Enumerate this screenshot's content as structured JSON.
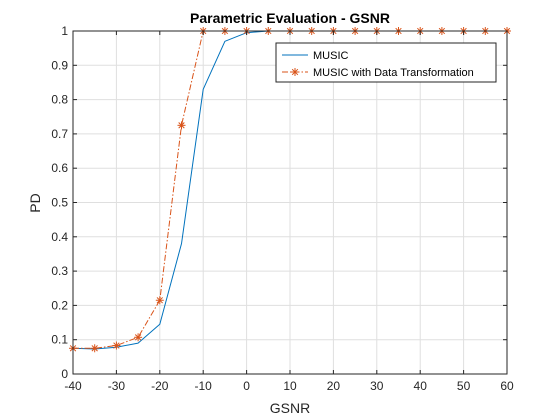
{
  "chart_data": {
    "type": "line",
    "title": "Parametric Evaluation - GSNR",
    "xlabel": "GSNR",
    "ylabel": "PD",
    "xlim": [
      -40,
      60
    ],
    "ylim": [
      0,
      1
    ],
    "xticks": [
      -40,
      -30,
      -20,
      -10,
      0,
      10,
      20,
      30,
      40,
      50,
      60
    ],
    "yticks": [
      0,
      0.1,
      0.2,
      0.3,
      0.4,
      0.5,
      0.6,
      0.7,
      0.8,
      0.9,
      1
    ],
    "grid": true,
    "legend_position": "top-right",
    "x": [
      -40,
      -35,
      -30,
      -25,
      -20,
      -15,
      -10,
      -5,
      0,
      5,
      10,
      15,
      20,
      25,
      30,
      35,
      40,
      45,
      50,
      55,
      60
    ],
    "series": [
      {
        "name": "MUSIC",
        "color": "#0072BD",
        "line_style": "solid",
        "marker": "none",
        "values": [
          0.075,
          0.073,
          0.078,
          0.09,
          0.145,
          0.38,
          0.83,
          0.97,
          0.995,
          1,
          1,
          1,
          1,
          1,
          1,
          1,
          1,
          1,
          1,
          1,
          1
        ]
      },
      {
        "name": "MUSIC with Data Transformation",
        "color": "#D95319",
        "line_style": "dash-dot",
        "marker": "asterisk",
        "values": [
          0.075,
          0.075,
          0.083,
          0.107,
          0.215,
          0.725,
          1,
          1,
          1,
          1,
          1,
          1,
          1,
          1,
          1,
          1,
          1,
          1,
          1,
          1,
          1
        ]
      }
    ]
  }
}
